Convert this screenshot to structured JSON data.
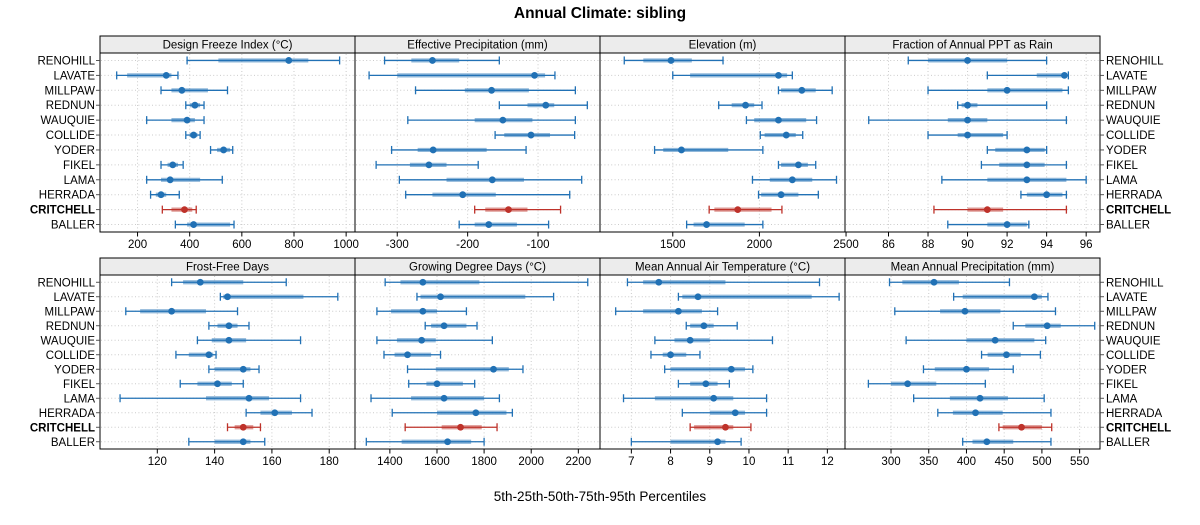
{
  "title": "Annual Climate: sibling",
  "caption": "5th-25th-50th-75th-95th Percentiles",
  "stations": [
    "RENOHILL",
    "LAVATE",
    "MILLPAW",
    "REDNUN",
    "WAUQUIE",
    "COLLIDE",
    "YODER",
    "FIKEL",
    "LAMA",
    "HERRADA",
    "CRITCHELL",
    "BALLER"
  ],
  "highlight_station": "CRITCHELL",
  "percentile_levels": [
    5,
    25,
    50,
    75,
    95
  ],
  "colors": {
    "series": "#2171B5",
    "highlight": "#BE322A",
    "band_opacity": 0.5,
    "strip_bg": "#ECECEC",
    "border": "#000000",
    "grid": "#CBCBCB",
    "text": "#000000",
    "axis": "#000000"
  },
  "chart_data": [
    {
      "type": "percentile-range",
      "panel": "Design Freeze Index (°C)",
      "xlim": [
        56,
        1034
      ],
      "ticks": [
        200,
        400,
        600,
        800,
        1000
      ],
      "percentiles": {
        "RENOHILL": [
          390,
          510,
          780,
          855,
          975
        ],
        "LAVATE": [
          120,
          160,
          310,
          330,
          355
        ],
        "MILLPAW": [
          290,
          330,
          370,
          470,
          545
        ],
        "REDNUN": [
          385,
          400,
          420,
          440,
          455
        ],
        "WAUQUIE": [
          235,
          330,
          390,
          420,
          455
        ],
        "COLLIDE": [
          385,
          400,
          415,
          430,
          440
        ],
        "YODER": [
          480,
          505,
          530,
          555,
          565
        ],
        "FIKEL": [
          290,
          315,
          335,
          355,
          375
        ],
        "LAMA": [
          235,
          290,
          325,
          440,
          525
        ],
        "HERRADA": [
          250,
          270,
          290,
          310,
          360
        ],
        "CRITCHELL": [
          295,
          330,
          380,
          410,
          425
        ],
        "BALLER": [
          345,
          390,
          415,
          555,
          570
        ]
      }
    },
    {
      "type": "percentile-range",
      "panel": "Effective Precipitation (mm)",
      "xlim": [
        -360,
        -12
      ],
      "ticks": [
        -300,
        -200,
        -100
      ],
      "percentiles": {
        "RENOHILL": [
          -318,
          -280,
          -250,
          -212,
          -155
        ],
        "LAVATE": [
          -340,
          -300,
          -105,
          -90,
          -76
        ],
        "MILLPAW": [
          -274,
          -204,
          -166,
          -113,
          -47
        ],
        "REDNUN": [
          -155,
          -115,
          -89,
          -77,
          -30
        ],
        "WAUQUIE": [
          -285,
          -190,
          -150,
          -108,
          -47
        ],
        "COLLIDE": [
          -161,
          -148,
          -110,
          -83,
          -48
        ],
        "YODER": [
          -308,
          -271,
          -249,
          -173,
          -117
        ],
        "FIKEL": [
          -330,
          -282,
          -255,
          -230,
          -185
        ],
        "LAMA": [
          -297,
          -230,
          -165,
          -120,
          -38
        ],
        "HERRADA": [
          -288,
          -250,
          -207,
          -160,
          -55
        ],
        "CRITCHELL": [
          -190,
          -175,
          -142,
          -115,
          -68
        ],
        "BALLER": [
          -212,
          -190,
          -170,
          -130,
          -85
        ]
      }
    },
    {
      "type": "percentile-range",
      "panel": "Elevation (m)",
      "xlim": [
        1080,
        2494
      ],
      "ticks": [
        1500,
        2000,
        2500
      ],
      "percentiles": {
        "RENOHILL": [
          1220,
          1330,
          1490,
          1610,
          1790
        ],
        "LAVATE": [
          1500,
          1600,
          2110,
          2160,
          2190
        ],
        "MILLPAW": [
          2110,
          2125,
          2245,
          2325,
          2420
        ],
        "REDNUN": [
          1765,
          1840,
          1920,
          1970,
          2015
        ],
        "WAUQUIE": [
          1925,
          1970,
          2110,
          2270,
          2330
        ],
        "COLLIDE": [
          2005,
          2030,
          2155,
          2210,
          2250
        ],
        "YODER": [
          1395,
          1445,
          1550,
          1820,
          2020
        ],
        "FIKEL": [
          2110,
          2125,
          2225,
          2280,
          2325
        ],
        "LAMA": [
          1960,
          2060,
          2190,
          2305,
          2445
        ],
        "HERRADA": [
          1995,
          2010,
          2125,
          2225,
          2340
        ],
        "CRITCHELL": [
          1710,
          1740,
          1875,
          2070,
          2130
        ],
        "BALLER": [
          1580,
          1620,
          1695,
          1915,
          2020
        ]
      }
    },
    {
      "type": "percentile-range",
      "panel": "Fraction of Annual PPT as Rain",
      "xlim": [
        83.8,
        96.7
      ],
      "ticks": [
        86,
        88,
        90,
        92,
        94,
        96
      ],
      "percentiles": {
        "RENOHILL": [
          87,
          88,
          90,
          92,
          94
        ],
        "LAVATE": [
          91,
          93.5,
          94.9,
          95,
          95.1
        ],
        "MILLPAW": [
          88,
          91,
          92,
          94.8,
          95.1
        ],
        "REDNUN": [
          89.5,
          89.7,
          90,
          90.5,
          94
        ],
        "WAUQUIE": [
          85,
          89,
          90,
          91,
          95
        ],
        "COLLIDE": [
          88,
          89.5,
          90,
          91.8,
          92
        ],
        "YODER": [
          91,
          91.4,
          93,
          93.9,
          94
        ],
        "FIKEL": [
          90.7,
          91.6,
          93,
          93.9,
          95
        ],
        "LAMA": [
          88.7,
          91,
          93,
          95,
          96
        ],
        "HERRADA": [
          92.7,
          93,
          94,
          94.8,
          95
        ],
        "CRITCHELL": [
          88.3,
          90,
          91,
          91.8,
          95
        ],
        "BALLER": [
          89,
          91,
          92,
          93,
          93.1
        ]
      }
    },
    {
      "type": "percentile-range",
      "panel": "Frost-Free Days",
      "xlim": [
        100,
        189
      ],
      "ticks": [
        120,
        140,
        160,
        180
      ],
      "percentiles": {
        "RENOHILL": [
          125,
          129,
          135,
          150,
          165
        ],
        "LAVATE": [
          142,
          143,
          144.5,
          171,
          183
        ],
        "MILLPAW": [
          109,
          114,
          125,
          137,
          148
        ],
        "REDNUN": [
          138,
          141,
          145,
          148,
          152
        ],
        "WAUQUIE": [
          134,
          139,
          145,
          151,
          170
        ],
        "COLLIDE": [
          126.5,
          131,
          138,
          139.5,
          140.5
        ],
        "YODER": [
          138,
          140,
          150,
          152.5,
          155.5
        ],
        "FIKEL": [
          128,
          134,
          141,
          146,
          150
        ],
        "LAMA": [
          107,
          137,
          152,
          159,
          170
        ],
        "HERRADA": [
          151,
          156,
          161,
          167,
          174
        ],
        "CRITCHELL": [
          144.5,
          147,
          150,
          153.5,
          156
        ],
        "BALLER": [
          131,
          140,
          150,
          152.5,
          157.5
        ]
      }
    },
    {
      "type": "percentile-range",
      "panel": "Growing Degree Days (°C)",
      "xlim": [
        1252,
        2292
      ],
      "ticks": [
        1400,
        1600,
        1800,
        2000,
        2200
      ],
      "percentiles": {
        "RENOHILL": [
          1380,
          1445,
          1540,
          1780,
          2240
        ],
        "LAVATE": [
          1515,
          1530,
          1615,
          1975,
          2095
        ],
        "MILLPAW": [
          1345,
          1405,
          1540,
          1600,
          1725
        ],
        "REDNUN": [
          1550,
          1575,
          1630,
          1725,
          1770
        ],
        "WAUQUIE": [
          1345,
          1430,
          1535,
          1595,
          1835
        ],
        "COLLIDE": [
          1375,
          1420,
          1475,
          1575,
          1615
        ],
        "YODER": [
          1475,
          1595,
          1840,
          1905,
          1965
        ],
        "FIKEL": [
          1480,
          1555,
          1600,
          1710,
          1760
        ],
        "LAMA": [
          1320,
          1490,
          1630,
          1800,
          1865
        ],
        "HERRADA": [
          1410,
          1600,
          1765,
          1895,
          1920
        ],
        "CRITCHELL": [
          1465,
          1620,
          1700,
          1790,
          1855
        ],
        "BALLER": [
          1300,
          1450,
          1645,
          1745,
          1800
        ]
      }
    },
    {
      "type": "percentile-range",
      "panel": "Mean Annual Air Temperature (°C)",
      "xlim": [
        6.2,
        12.45
      ],
      "ticks": [
        7,
        8,
        9,
        10,
        11,
        12
      ],
      "percentiles": {
        "RENOHILL": [
          6.9,
          7.3,
          7.7,
          9.4,
          11.8
        ],
        "LAVATE": [
          8.2,
          8.3,
          8.7,
          11.6,
          12.3
        ],
        "MILLPAW": [
          6.6,
          7.3,
          8.2,
          8.8,
          9.2
        ],
        "REDNUN": [
          8.4,
          8.5,
          8.85,
          9.1,
          9.7
        ],
        "WAUQUIE": [
          7.6,
          8.1,
          8.5,
          9.0,
          10.6
        ],
        "COLLIDE": [
          7.5,
          7.8,
          8.0,
          8.4,
          8.75
        ],
        "YODER": [
          7.85,
          8.0,
          9.55,
          9.9,
          10.1
        ],
        "FIKEL": [
          8.2,
          8.5,
          8.9,
          9.2,
          9.5
        ],
        "LAMA": [
          6.8,
          7.6,
          9.1,
          9.6,
          10.45
        ],
        "HERRADA": [
          8.3,
          9.0,
          9.65,
          9.9,
          10.45
        ],
        "CRITCHELL": [
          8.5,
          8.6,
          9.4,
          9.6,
          10.05
        ],
        "BALLER": [
          7.0,
          8.0,
          9.2,
          9.4,
          9.8
        ]
      }
    },
    {
      "type": "percentile-range",
      "panel": "Mean Annual Precipitation (mm)",
      "xlim": [
        239,
        577
      ],
      "ticks": [
        300,
        350,
        400,
        450,
        500,
        550
      ],
      "percentiles": {
        "RENOHILL": [
          298,
          315,
          357,
          390,
          457
        ],
        "LAVATE": [
          383,
          395,
          490,
          500,
          508
        ],
        "MILLPAW": [
          305,
          365,
          398,
          445,
          518
        ],
        "REDNUN": [
          462,
          478,
          507,
          525,
          570
        ],
        "WAUQUIE": [
          320,
          400,
          438,
          490,
          505
        ],
        "COLLIDE": [
          420,
          428,
          453,
          472,
          498
        ],
        "YODER": [
          343,
          358,
          400,
          430,
          462
        ],
        "FIKEL": [
          270,
          300,
          322,
          360,
          425
        ],
        "LAMA": [
          330,
          378,
          418,
          455,
          503
        ],
        "HERRADA": [
          362,
          382,
          412,
          448,
          512
        ],
        "CRITCHELL": [
          443,
          448,
          473,
          500,
          513
        ],
        "BALLER": [
          395,
          408,
          427,
          462,
          512
        ]
      }
    }
  ]
}
